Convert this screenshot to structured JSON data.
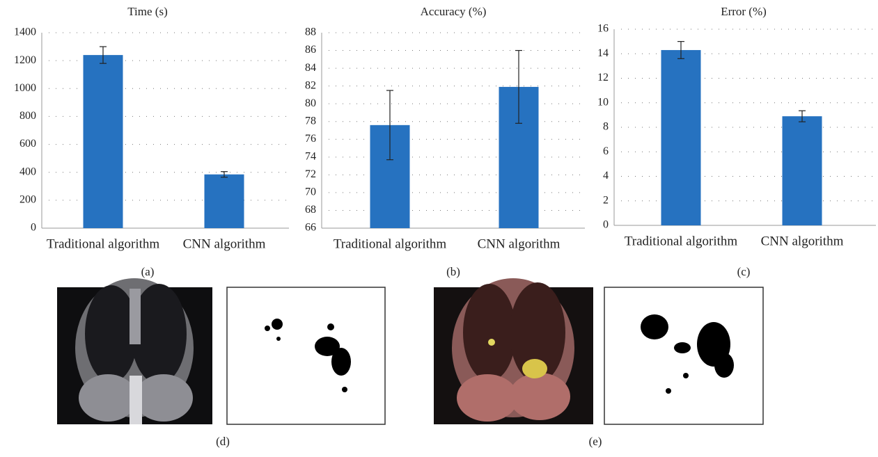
{
  "chart_data": [
    {
      "type": "bar",
      "title": "Time (s)",
      "panel_label": "(a)",
      "categories": [
        "Traditional algorithm",
        "CNN algorithm"
      ],
      "values": [
        1240,
        385
      ],
      "errors": [
        60,
        20
      ],
      "color": "#2672c0",
      "ylim": [
        0,
        1400
      ],
      "yticks": [
        0,
        200,
        400,
        600,
        800,
        1000,
        1200,
        1400
      ],
      "grid": true
    },
    {
      "type": "bar",
      "title": "Accuracy (%)",
      "panel_label": "(b)",
      "categories": [
        "Traditional algorithm",
        "CNN algorithm"
      ],
      "values": [
        77.6,
        81.9
      ],
      "errors": [
        3.9,
        4.1
      ],
      "color": "#2672c0",
      "ylim": [
        66,
        88
      ],
      "yticks": [
        66,
        68,
        70,
        72,
        74,
        76,
        78,
        80,
        82,
        84,
        86,
        88
      ],
      "grid": true
    },
    {
      "type": "bar",
      "title": "Error (%)",
      "panel_label": "(c)",
      "categories": [
        "Traditional algorithm",
        "CNN algorithm"
      ],
      "values": [
        14.3,
        8.9
      ],
      "errors": [
        0.7,
        0.45
      ],
      "color": "#2672c0",
      "ylim": [
        0,
        16
      ],
      "yticks": [
        0,
        2,
        4,
        6,
        8,
        10,
        12,
        14,
        16
      ],
      "grid": true
    }
  ],
  "image_panels": [
    {
      "label": "(d)"
    },
    {
      "label": "(e)"
    }
  ]
}
